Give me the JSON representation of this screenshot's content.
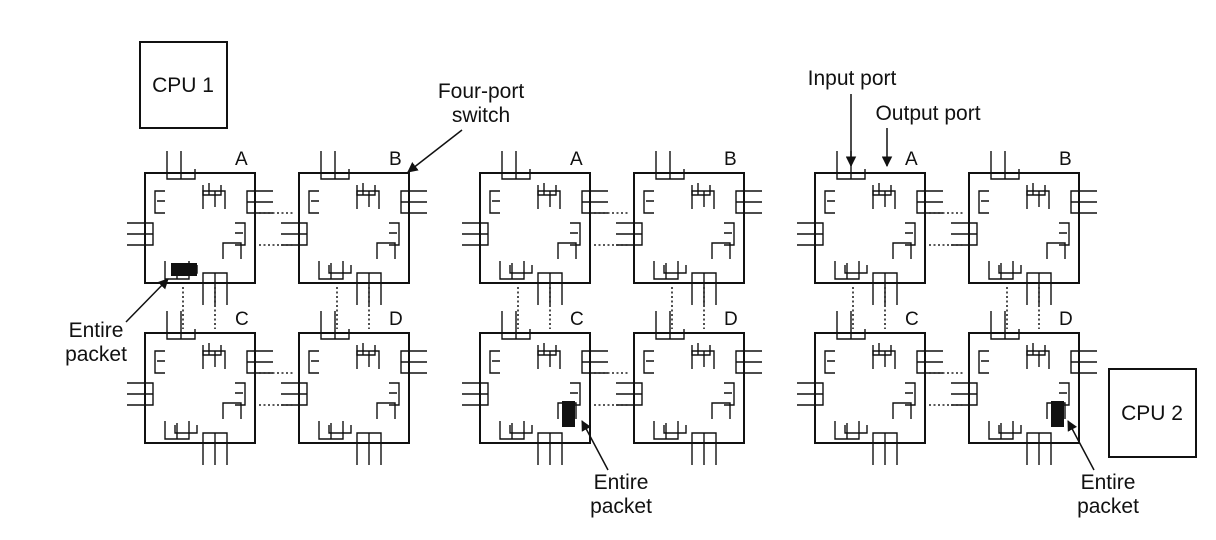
{
  "cpu1": "CPU 1",
  "cpu2": "CPU 2",
  "labels": {
    "four_port_switch": [
      "Four-port",
      "switch"
    ],
    "input_port": "Input port",
    "output_port": "Output port",
    "entire_packet": [
      "Entire",
      "packet"
    ]
  },
  "switch_names": [
    "A",
    "B",
    "C",
    "D"
  ],
  "panels": [
    {
      "packet_at": "A",
      "packet_side": "south"
    },
    {
      "packet_at": "C",
      "packet_side": "east"
    },
    {
      "packet_at": "D",
      "packet_side": "east"
    }
  ]
}
